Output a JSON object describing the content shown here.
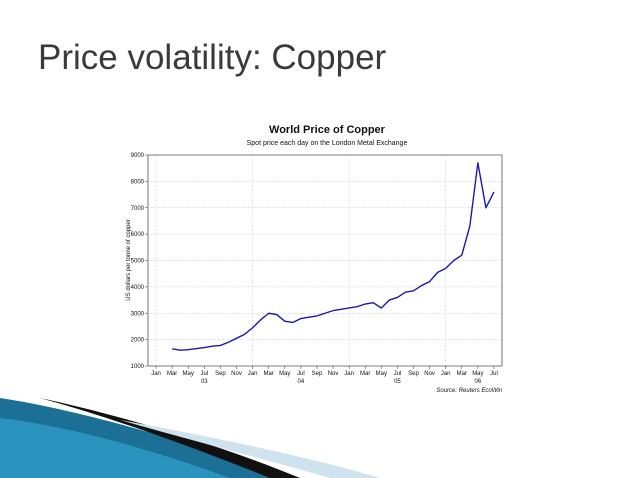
{
  "slide_title": "Price volatility: Copper",
  "chart_data": {
    "type": "line",
    "title": "World Price of Copper",
    "subtitle": "Spot price each day on the London Metal Exchange",
    "y_label": "US dollars per tonne of copper",
    "source": "Source: Reuters EcoWin",
    "color": "#1a1aa6",
    "x": [
      "2003-03",
      "2003-04",
      "2003-05",
      "2003-06",
      "2003-07",
      "2003-08",
      "2003-09",
      "2003-10",
      "2003-11",
      "2003-12",
      "2004-01",
      "2004-02",
      "2004-03",
      "2004-04",
      "2004-05",
      "2004-06",
      "2004-07",
      "2004-08",
      "2004-09",
      "2004-10",
      "2004-11",
      "2004-12",
      "2005-01",
      "2005-02",
      "2005-03",
      "2005-04",
      "2005-05",
      "2005-06",
      "2005-07",
      "2005-08",
      "2005-09",
      "2005-10",
      "2005-11",
      "2005-12",
      "2006-01",
      "2006-02",
      "2006-03",
      "2006-04",
      "2006-05",
      "2006-06",
      "2006-07"
    ],
    "values": [
      1650,
      1600,
      1620,
      1660,
      1700,
      1750,
      1780,
      1900,
      2050,
      2200,
      2450,
      2750,
      3000,
      2950,
      2700,
      2650,
      2800,
      2850,
      2900,
      3000,
      3100,
      3150,
      3200,
      3250,
      3350,
      3400,
      3200,
      3500,
      3600,
      3800,
      3850,
      4050,
      4200,
      4550,
      4700,
      5000,
      5200,
      6300,
      8700,
      7000,
      7600
    ],
    "xlim": [
      "2002-12",
      "2006-08"
    ],
    "ylim": [
      1000,
      9000
    ],
    "yticks": [
      1000,
      2000,
      3000,
      4000,
      5000,
      6000,
      7000,
      8000,
      9000
    ],
    "xticks": [
      {
        "value": "2003-01",
        "label": "Jan"
      },
      {
        "value": "2003-03",
        "label": "Mar"
      },
      {
        "value": "2003-05",
        "label": "May"
      },
      {
        "value": "2003-07",
        "label": "Jul"
      },
      {
        "value": "2003-09",
        "label": "Sep"
      },
      {
        "value": "2003-11",
        "label": "Nov"
      },
      {
        "value": "2004-01",
        "label": "Jan"
      },
      {
        "value": "2004-03",
        "label": "Mar"
      },
      {
        "value": "2004-05",
        "label": "May"
      },
      {
        "value": "2004-07",
        "label": "Jul"
      },
      {
        "value": "2004-09",
        "label": "Sep"
      },
      {
        "value": "2004-11",
        "label": "Nov"
      },
      {
        "value": "2005-01",
        "label": "Jan"
      },
      {
        "value": "2005-03",
        "label": "Mar"
      },
      {
        "value": "2005-05",
        "label": "May"
      },
      {
        "value": "2005-07",
        "label": "Jul"
      },
      {
        "value": "2005-09",
        "label": "Sep"
      },
      {
        "value": "2005-11",
        "label": "Nov"
      },
      {
        "value": "2006-01",
        "label": "Jan"
      },
      {
        "value": "2006-03",
        "label": "Mar"
      },
      {
        "value": "2006-05",
        "label": "May"
      },
      {
        "value": "2006-07",
        "label": "Jul"
      }
    ],
    "year_labels": [
      {
        "value": "2003-07",
        "label": "03"
      },
      {
        "value": "2004-07",
        "label": "04"
      },
      {
        "value": "2005-07",
        "label": "05"
      },
      {
        "value": "2006-05",
        "label": "06"
      }
    ],
    "grid": true
  }
}
